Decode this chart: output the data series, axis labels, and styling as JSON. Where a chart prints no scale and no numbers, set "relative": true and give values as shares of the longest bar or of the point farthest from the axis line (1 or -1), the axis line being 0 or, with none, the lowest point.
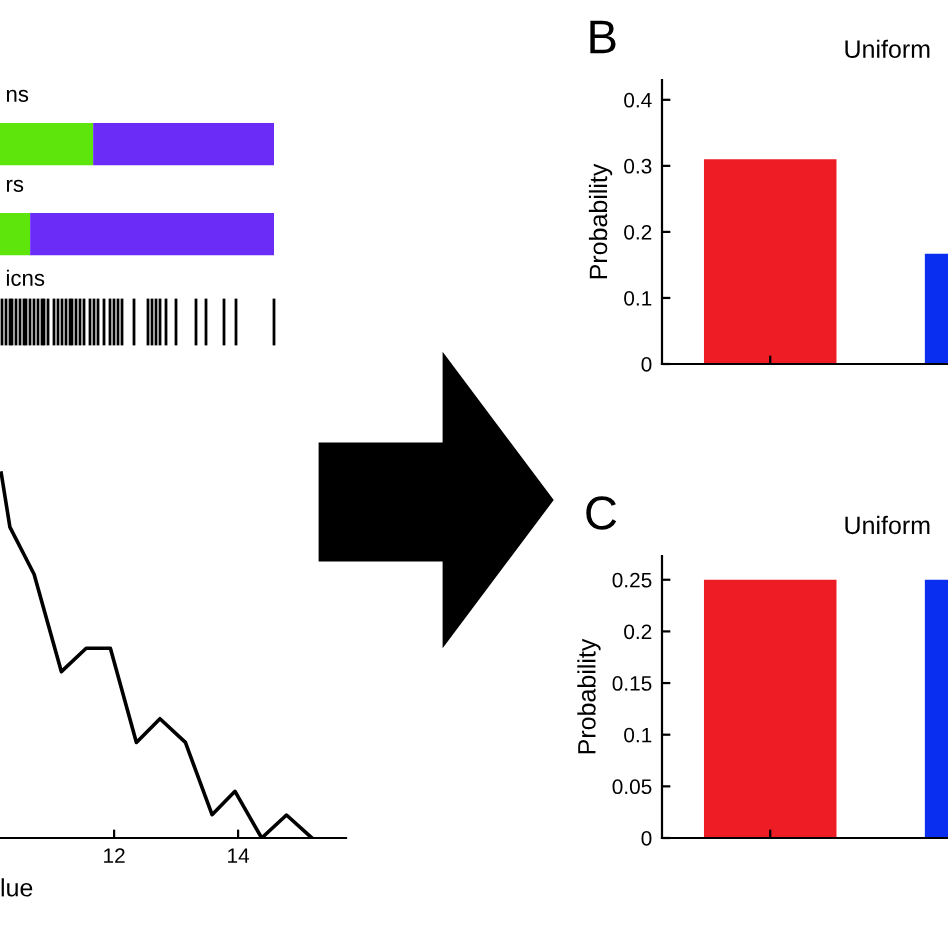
{
  "chart_data": [
    {
      "type": "bar",
      "orientation": "horizontal",
      "stacked": true,
      "relative": true,
      "categories": [
        "ns",
        "rs"
      ],
      "annotations": [
        "icns"
      ],
      "series": [
        {
          "color": "#5ee60c",
          "values": [
            0.34,
            0.11
          ]
        },
        {
          "color": "#6a2cf6",
          "values": [
            0.66,
            0.89
          ]
        }
      ]
    },
    {
      "type": "bar",
      "title": "Uniform",
      "ylabel": "Probability",
      "annotations": [
        "B"
      ],
      "categories": [
        null,
        null
      ],
      "colors": [
        "#ee1c25",
        "#0a2ef0"
      ],
      "values": [
        0.31,
        0.167
      ],
      "ylim": [
        0,
        0.43
      ],
      "yticks": [
        0,
        0.1,
        0.2,
        0.3,
        0.4
      ],
      "tick_labels": "y"
    },
    {
      "type": "line",
      "relative": true,
      "xlabel": "lue",
      "x": [
        10.18,
        10.32,
        10.71,
        11.15,
        11.55,
        11.94,
        12.36,
        12.74,
        13.15,
        13.58,
        13.95,
        14.38,
        14.78,
        15.19
      ],
      "series": [
        {
          "color": "#000000",
          "values": [
            1,
            0.852,
            0.723,
            0.456,
            0.52,
            0.52,
            0.262,
            0.327,
            0.262,
            0.064,
            0.128,
            0,
            0.063,
            0
          ]
        }
      ],
      "xlim": [
        10.16,
        15.74
      ],
      "xticks": [
        12,
        14
      ],
      "tick_labels": "x"
    },
    {
      "type": "bar",
      "title": "Uniform",
      "ylabel": "Probability",
      "annotations": [
        "C"
      ],
      "categories": [
        null,
        null
      ],
      "colors": [
        "#ee1c25",
        "#0a2ef0"
      ],
      "values": [
        0.25,
        0.25
      ],
      "ylim": [
        0,
        0.273
      ],
      "yticks": [
        0,
        0.05,
        0.1,
        0.15,
        0.2,
        0.25
      ],
      "tick_labels": "y"
    }
  ]
}
